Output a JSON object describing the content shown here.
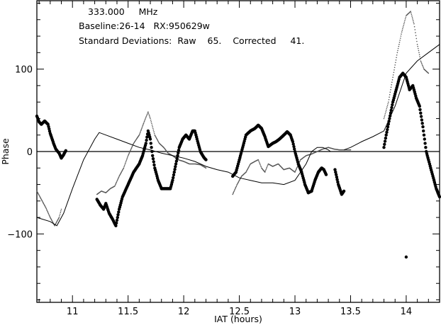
{
  "chart_data": {
    "type": "scatter",
    "header": {
      "frequency_value": "333.000",
      "frequency_unit": "MHz",
      "baseline_label": "Baseline:",
      "baseline_value": "26-14",
      "rx_label": "RX:",
      "rx_value": "950629w",
      "std_label": "Standard Deviations:",
      "raw_label": "Raw",
      "raw_value": "65.",
      "corrected_label": "Corrected",
      "corrected_value": "41."
    },
    "xlabel": "IAT (hours)",
    "ylabel": "Phase",
    "xlim": [
      10.68,
      14.3
    ],
    "ylim": [
      -183,
      183
    ],
    "x_ticks": [
      11,
      11.5,
      12,
      12.5,
      13,
      13.5,
      14
    ],
    "x_tick_labels": [
      "11",
      "11.5",
      "12",
      "12.5",
      "13",
      "13.5",
      "14"
    ],
    "y_ticks": [
      -100,
      0,
      100
    ],
    "y_tick_labels": [
      "−100",
      "0",
      "100"
    ],
    "zero_line": 0,
    "colors": {
      "ink": "#000000",
      "raw": "#555555",
      "background": "#ffffff"
    },
    "series": [
      {
        "role": "corrected",
        "style": "large-dots",
        "segments": [
          [
            [
              10.68,
              43
            ],
            [
              10.7,
              36
            ],
            [
              10.72,
              33
            ],
            [
              10.75,
              37
            ],
            [
              10.78,
              33
            ],
            [
              10.8,
              22
            ],
            [
              10.83,
              10
            ],
            [
              10.85,
              3
            ],
            [
              10.88,
              -2
            ],
            [
              10.9,
              -8
            ],
            [
              10.92,
              -4
            ],
            [
              10.94,
              1
            ]
          ],
          [
            [
              11.22,
              -58
            ],
            [
              11.25,
              -65
            ],
            [
              11.28,
              -70
            ],
            [
              11.3,
              -63
            ],
            [
              11.33,
              -75
            ],
            [
              11.36,
              -82
            ],
            [
              11.39,
              -90
            ],
            [
              11.42,
              -70
            ],
            [
              11.45,
              -55
            ],
            [
              11.5,
              -40
            ],
            [
              11.55,
              -25
            ],
            [
              11.6,
              -15
            ],
            [
              11.63,
              -5
            ],
            [
              11.66,
              10
            ],
            [
              11.68,
              25
            ],
            [
              11.7,
              15
            ],
            [
              11.72,
              -5
            ],
            [
              11.74,
              -20
            ],
            [
              11.77,
              -35
            ],
            [
              11.8,
              -45
            ],
            [
              11.84,
              -45
            ],
            [
              11.88,
              -45
            ],
            [
              11.9,
              -35
            ],
            [
              11.93,
              -15
            ],
            [
              11.96,
              5
            ],
            [
              11.99,
              15
            ],
            [
              12.02,
              20
            ],
            [
              12.05,
              15
            ],
            [
              12.08,
              25
            ],
            [
              12.1,
              25
            ],
            [
              12.12,
              15
            ],
            [
              12.15,
              0
            ],
            [
              12.18,
              -7
            ],
            [
              12.2,
              -10
            ]
          ],
          [
            [
              12.44,
              -30
            ],
            [
              12.47,
              -25
            ],
            [
              12.5,
              -10
            ],
            [
              12.53,
              5
            ],
            [
              12.56,
              20
            ],
            [
              12.6,
              25
            ],
            [
              12.64,
              28
            ],
            [
              12.67,
              32
            ],
            [
              12.7,
              28
            ],
            [
              12.73,
              18
            ],
            [
              12.76,
              6
            ],
            [
              12.8,
              10
            ],
            [
              12.83,
              12
            ],
            [
              12.86,
              15
            ],
            [
              12.9,
              20
            ],
            [
              12.93,
              24
            ],
            [
              12.96,
              20
            ],
            [
              12.98,
              12
            ],
            [
              13.0,
              0
            ],
            [
              13.03,
              -15
            ],
            [
              13.06,
              -25
            ],
            [
              13.09,
              -40
            ],
            [
              13.12,
              -50
            ],
            [
              13.15,
              -48
            ],
            [
              13.18,
              -35
            ],
            [
              13.21,
              -25
            ],
            [
              13.24,
              -20
            ],
            [
              13.26,
              -22
            ],
            [
              13.28,
              -28
            ]
          ],
          [
            [
              13.36,
              -22
            ],
            [
              13.39,
              -40
            ],
            [
              13.42,
              -52
            ],
            [
              13.44,
              -48
            ]
          ],
          [
            [
              13.8,
              5
            ],
            [
              13.82,
              20
            ],
            [
              13.85,
              40
            ],
            [
              13.88,
              60
            ],
            [
              13.91,
              75
            ],
            [
              13.94,
              90
            ],
            [
              13.97,
              95
            ],
            [
              14.0,
              90
            ],
            [
              14.03,
              75
            ],
            [
              14.06,
              80
            ],
            [
              14.09,
              65
            ],
            [
              14.12,
              55
            ],
            [
              14.15,
              30
            ],
            [
              14.18,
              0
            ],
            [
              14.21,
              -15
            ],
            [
              14.24,
              -30
            ],
            [
              14.27,
              -45
            ],
            [
              14.3,
              -55
            ]
          ]
        ],
        "outliers": [
          [
            14.0,
            -128
          ],
          [
            13.12,
            -50
          ]
        ]
      },
      {
        "role": "raw",
        "style": "small-dots",
        "segments": [
          [
            [
              10.68,
              -48
            ],
            [
              10.72,
              -58
            ],
            [
              10.76,
              -68
            ],
            [
              10.8,
              -80
            ],
            [
              10.84,
              -90
            ],
            [
              10.88,
              -80
            ],
            [
              10.9,
              -70
            ]
          ],
          [
            [
              11.22,
              -52
            ],
            [
              11.26,
              -48
            ],
            [
              11.3,
              -50
            ],
            [
              11.34,
              -45
            ],
            [
              11.38,
              -42
            ],
            [
              11.42,
              -30
            ],
            [
              11.46,
              -20
            ],
            [
              11.5,
              -5
            ],
            [
              11.55,
              10
            ],
            [
              11.6,
              20
            ],
            [
              11.65,
              38
            ],
            [
              11.68,
              48
            ],
            [
              11.7,
              40
            ],
            [
              11.74,
              20
            ],
            [
              11.78,
              10
            ],
            [
              11.82,
              5
            ],
            [
              11.86,
              -2
            ],
            [
              11.9,
              -5
            ],
            [
              11.95,
              -10
            ],
            [
              12.0,
              -12
            ],
            [
              12.05,
              -15
            ],
            [
              12.1,
              -15
            ],
            [
              12.15,
              -16
            ],
            [
              12.2,
              -20
            ]
          ],
          [
            [
              12.44,
              -52
            ],
            [
              12.48,
              -40
            ],
            [
              12.52,
              -30
            ],
            [
              12.56,
              -25
            ],
            [
              12.6,
              -15
            ],
            [
              12.64,
              -12
            ],
            [
              12.67,
              -10
            ],
            [
              12.7,
              -20
            ],
            [
              12.73,
              -25
            ],
            [
              12.76,
              -15
            ],
            [
              12.8,
              -18
            ],
            [
              12.85,
              -15
            ],
            [
              12.9,
              -22
            ],
            [
              12.95,
              -20
            ],
            [
              13.0,
              -25
            ],
            [
              13.05,
              -10
            ],
            [
              13.1,
              -5
            ],
            [
              13.15,
              -3
            ],
            [
              13.2,
              0
            ],
            [
              13.25,
              3
            ],
            [
              13.3,
              5
            ],
            [
              13.35,
              3
            ],
            [
              13.4,
              2
            ],
            [
              13.5,
              2
            ]
          ],
          [
            [
              13.8,
              40
            ],
            [
              13.84,
              60
            ],
            [
              13.88,
              90
            ],
            [
              13.92,
              120
            ],
            [
              13.96,
              145
            ],
            [
              14.0,
              165
            ],
            [
              14.04,
              170
            ],
            [
              14.07,
              155
            ],
            [
              14.1,
              130
            ],
            [
              14.13,
              110
            ],
            [
              14.16,
              100
            ],
            [
              14.2,
              95
            ]
          ]
        ]
      },
      {
        "role": "reference",
        "style": "line",
        "segments": [
          [
            [
              10.68,
              -80
            ],
            [
              10.8,
              -85
            ],
            [
              10.86,
              -90
            ],
            [
              10.92,
              -75
            ],
            [
              11.0,
              -45
            ],
            [
              11.1,
              -10
            ],
            [
              11.2,
              15
            ],
            [
              11.24,
              23
            ],
            [
              11.3,
              20
            ],
            [
              11.4,
              15
            ],
            [
              11.5,
              10
            ],
            [
              11.6,
              5
            ],
            [
              11.7,
              2
            ],
            [
              11.8,
              -2
            ],
            [
              11.9,
              -5
            ],
            [
              12.0,
              -8
            ],
            [
              12.1,
              -12
            ],
            [
              12.2,
              -18
            ],
            [
              12.3,
              -22
            ],
            [
              12.4,
              -25
            ],
            [
              12.5,
              -32
            ],
            [
              12.6,
              -35
            ],
            [
              12.7,
              -38
            ],
            [
              12.8,
              -38
            ],
            [
              12.9,
              -40
            ],
            [
              13.0,
              -35
            ],
            [
              13.05,
              -25
            ],
            [
              13.1,
              -15
            ],
            [
              13.15,
              0
            ],
            [
              13.2,
              5
            ],
            [
              13.25,
              5
            ],
            [
              13.3,
              2
            ],
            [
              13.32,
              0
            ]
          ],
          [
            [
              13.44,
              2
            ],
            [
              13.5,
              5
            ],
            [
              13.6,
              12
            ],
            [
              13.7,
              18
            ],
            [
              13.8,
              25
            ],
            [
              13.9,
              55
            ],
            [
              14.0,
              95
            ],
            [
              14.1,
              110
            ],
            [
              14.2,
              120
            ],
            [
              14.3,
              130
            ]
          ]
        ]
      }
    ]
  }
}
